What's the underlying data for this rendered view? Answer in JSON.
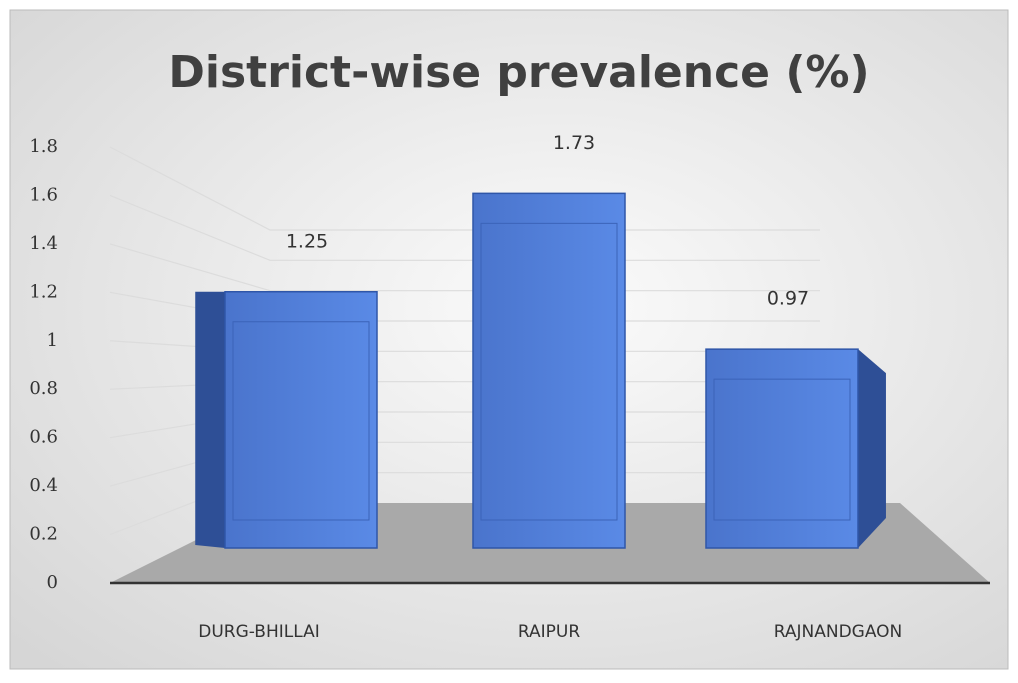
{
  "chart_data": {
    "type": "bar",
    "title": "District-wise prevalence (%)",
    "categories": [
      "DURG-BHILLAI",
      "RAIPUR",
      "RAJNANDGAON"
    ],
    "values": [
      1.25,
      1.73,
      0.97
    ],
    "color": "#4f7fdc",
    "ylim": [
      0,
      1.8
    ],
    "yticks": [
      0,
      0.2,
      0.4,
      0.6,
      0.8,
      1,
      1.2,
      1.4,
      1.6,
      1.8
    ],
    "grid": true
  }
}
